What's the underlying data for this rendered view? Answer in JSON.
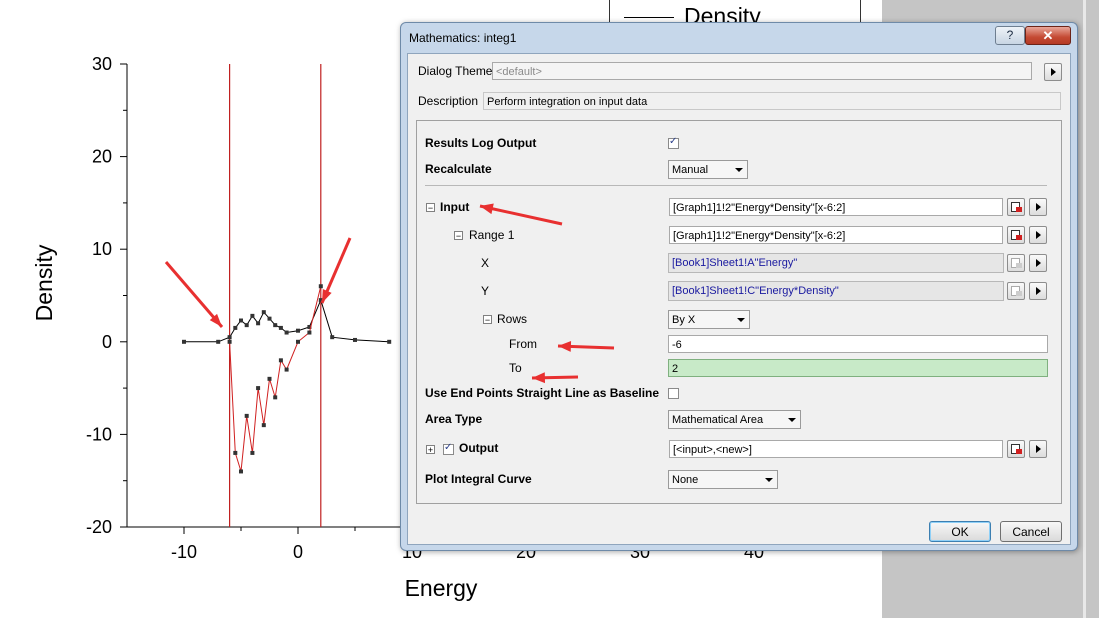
{
  "legend": {
    "label": "Density"
  },
  "chart_data": {
    "type": "line",
    "xlabel": "Energy",
    "ylabel": "Density",
    "xlim": [
      -15,
      50
    ],
    "ylim": [
      -20,
      30
    ],
    "xticks": [
      "-10",
      "0",
      "10",
      "20",
      "30",
      "40"
    ],
    "yticks": [
      "30",
      "20",
      "10",
      "0",
      "-10",
      "-20"
    ],
    "vlines": [
      -6,
      2
    ],
    "series": [
      {
        "name": "Density",
        "color": "#000000",
        "x": [
          -10,
          -7,
          -6,
          -5.5,
          -5,
          -4.5,
          -4,
          -3.5,
          -3,
          -2.5,
          -2,
          -1.5,
          -1,
          0,
          1,
          2,
          3,
          5,
          8
        ],
        "y": [
          0,
          0,
          0.5,
          1.5,
          2.3,
          1.8,
          2.8,
          2.0,
          3.2,
          2.5,
          1.8,
          1.5,
          1.0,
          1.2,
          1.6,
          4.5,
          0.5,
          0.2,
          0
        ]
      },
      {
        "name": "Energy*Density",
        "color": "#d02020",
        "x": [
          -6,
          -5.5,
          -5,
          -4.5,
          -4,
          -3.5,
          -3,
          -2.5,
          -2,
          -1.5,
          -1,
          0,
          1,
          2
        ],
        "y": [
          0,
          -12,
          -14,
          -8,
          -12,
          -5,
          -9,
          -4,
          -6,
          -2,
          -3,
          0,
          1,
          6
        ]
      }
    ]
  },
  "dialog": {
    "title": "Mathematics: integ1",
    "help": "?",
    "close": "✕",
    "theme": {
      "label": "Dialog Theme",
      "value": "<default>"
    },
    "description": {
      "label": "Description",
      "value": "Perform integration on input data"
    },
    "results_log": {
      "label": "Results Log Output",
      "checked": true
    },
    "recalculate": {
      "label": "Recalculate",
      "value": "Manual"
    },
    "input": {
      "label": "Input",
      "value": "[Graph1]1!2\"Energy*Density\"[x-6:2]"
    },
    "range1": {
      "label": "Range 1",
      "value": "[Graph1]1!2\"Energy*Density\"[x-6:2]"
    },
    "x": {
      "label": "X",
      "value": "[Book1]Sheet1!A\"Energy\""
    },
    "y": {
      "label": "Y",
      "value": "[Book1]Sheet1!C\"Energy*Density\""
    },
    "rows": {
      "label": "Rows",
      "value": "By X"
    },
    "from": {
      "label": "From",
      "value": "-6"
    },
    "to": {
      "label": "To",
      "value": "2"
    },
    "baseline": {
      "label": "Use End Points Straight Line as Baseline",
      "checked": false
    },
    "area_type": {
      "label": "Area Type",
      "value": "Mathematical Area"
    },
    "output": {
      "label": "Output",
      "value": "[<input>,<new>]",
      "checked": true
    },
    "plot_curve": {
      "label": "Plot Integral Curve",
      "value": "None"
    },
    "ok": "OK",
    "cancel": "Cancel"
  }
}
